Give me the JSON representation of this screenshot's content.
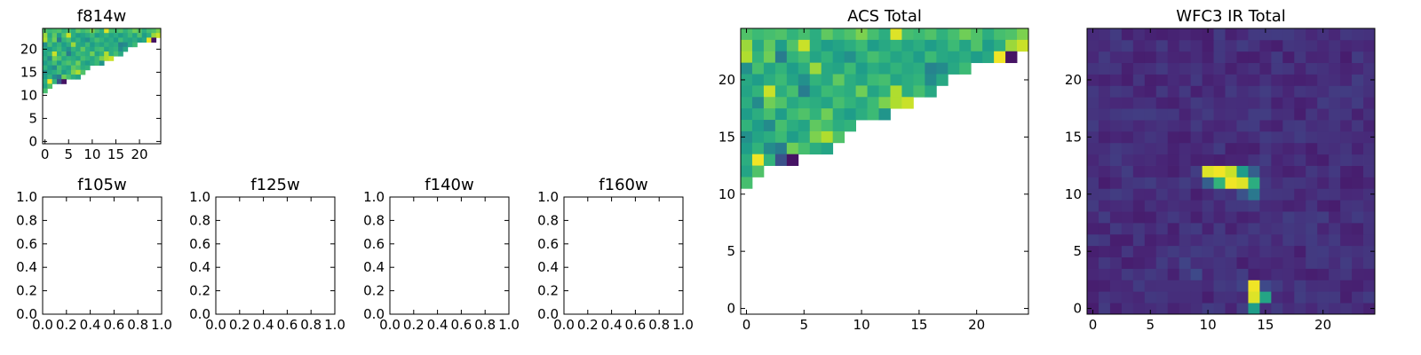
{
  "chart_data": [
    {
      "id": "f814w",
      "type": "heatmap",
      "title": "f814w",
      "xlim": [
        -0.5,
        24.5
      ],
      "ylim": [
        -0.5,
        24.5
      ],
      "xticks": [
        0,
        5,
        10,
        15,
        20
      ],
      "yticks": [
        0,
        5,
        10,
        15,
        20
      ],
      "source": "acs",
      "cbar_range": [
        0,
        1
      ]
    },
    {
      "id": "f105w",
      "type": "heatmap",
      "title": "f105w",
      "xlim": [
        0.0,
        1.0
      ],
      "ylim": [
        0.0,
        1.0
      ],
      "xticks": [
        0.0,
        0.2,
        0.4,
        0.6,
        0.8,
        1.0
      ],
      "yticks": [
        0.0,
        0.2,
        0.4,
        0.6,
        0.8,
        1.0
      ],
      "xtick_labels": [
        "0.0",
        "0.2",
        "0.4",
        "0.6",
        "0.8",
        "1.0"
      ],
      "ytick_labels": [
        "0.0",
        "0.2",
        "0.4",
        "0.6",
        "0.8",
        "1.0"
      ],
      "empty": true
    },
    {
      "id": "f125w",
      "type": "heatmap",
      "title": "f125w",
      "xlim": [
        0.0,
        1.0
      ],
      "ylim": [
        0.0,
        1.0
      ],
      "xticks": [
        0.0,
        0.2,
        0.4,
        0.6,
        0.8,
        1.0
      ],
      "yticks": [
        0.0,
        0.2,
        0.4,
        0.6,
        0.8,
        1.0
      ],
      "xtick_labels": [
        "0.0",
        "0.2",
        "0.4",
        "0.6",
        "0.8",
        "1.0"
      ],
      "ytick_labels": [
        "0.0",
        "0.2",
        "0.4",
        "0.6",
        "0.8",
        "1.0"
      ],
      "empty": true
    },
    {
      "id": "f140w",
      "type": "heatmap",
      "title": "f140w",
      "xlim": [
        0.0,
        1.0
      ],
      "ylim": [
        0.0,
        1.0
      ],
      "xticks": [
        0.0,
        0.2,
        0.4,
        0.6,
        0.8,
        1.0
      ],
      "yticks": [
        0.0,
        0.2,
        0.4,
        0.6,
        0.8,
        1.0
      ],
      "xtick_labels": [
        "0.0",
        "0.2",
        "0.4",
        "0.6",
        "0.8",
        "1.0"
      ],
      "ytick_labels": [
        "0.0",
        "0.2",
        "0.4",
        "0.6",
        "0.8",
        "1.0"
      ],
      "empty": true
    },
    {
      "id": "f160w",
      "type": "heatmap",
      "title": "f160w",
      "xlim": [
        0.0,
        1.0
      ],
      "ylim": [
        0.0,
        1.0
      ],
      "xticks": [
        0.0,
        0.2,
        0.4,
        0.6,
        0.8,
        1.0
      ],
      "yticks": [
        0.0,
        0.2,
        0.4,
        0.6,
        0.8,
        1.0
      ],
      "xtick_labels": [
        "0.0",
        "0.2",
        "0.4",
        "0.6",
        "0.8",
        "1.0"
      ],
      "ytick_labels": [
        "0.0",
        "0.2",
        "0.4",
        "0.6",
        "0.8",
        "1.0"
      ],
      "empty": true
    },
    {
      "id": "acs_total",
      "type": "heatmap",
      "title": "ACS Total",
      "xlim": [
        -0.5,
        24.5
      ],
      "ylim": [
        -0.5,
        24.5
      ],
      "xticks": [
        0,
        5,
        10,
        15,
        20
      ],
      "yticks": [
        0,
        5,
        10,
        15,
        20
      ],
      "source": "acs",
      "cbar_range": [
        0,
        1
      ]
    },
    {
      "id": "wfc3_ir_total",
      "type": "heatmap",
      "title": "WFC3 IR Total",
      "xlim": [
        -0.5,
        24.5
      ],
      "ylim": [
        -0.5,
        24.5
      ],
      "xticks": [
        0,
        5,
        10,
        15,
        20
      ],
      "yticks": [
        0,
        5,
        10,
        15,
        20
      ],
      "source": "ir",
      "cbar_range": [
        0,
        1
      ]
    }
  ],
  "grids": {
    "acs": {
      "shape": [
        25,
        25
      ],
      "rows_top_to_bottom": [
        [
          0.72,
          0.68,
          0.7,
          0.72,
          0.65,
          0.7,
          0.62,
          0.75,
          0.68,
          0.72,
          0.8,
          0.7,
          0.62,
          0.95,
          0.7,
          0.68,
          0.72,
          0.64,
          0.7,
          0.78,
          0.72,
          0.62,
          0.7,
          0.72,
          0.8
        ],
        [
          0.85,
          0.6,
          0.75,
          0.55,
          0.72,
          0.92,
          0.62,
          0.55,
          0.58,
          0.62,
          0.68,
          0.55,
          0.6,
          0.65,
          0.58,
          0.62,
          0.55,
          0.6,
          0.68,
          0.58,
          0.72,
          0.55,
          0.62,
          0.85,
          0.92
        ],
        [
          0.88,
          0.65,
          0.78,
          0.42,
          0.65,
          0.7,
          0.58,
          0.65,
          0.55,
          0.5,
          0.62,
          0.7,
          0.65,
          0.58,
          0.62,
          0.55,
          0.68,
          0.6,
          0.58,
          0.62,
          0.55,
          0.6,
          0.98,
          0.05
        ],
        [
          0.5,
          0.7,
          0.58,
          0.65,
          0.55,
          0.62,
          0.85,
          0.6,
          0.58,
          0.68,
          0.55,
          0.62,
          0.58,
          0.65,
          0.6,
          0.62,
          0.45,
          0.48,
          0.6,
          0.68
        ],
        [
          0.6,
          0.55,
          0.62,
          0.68,
          0.58,
          0.5,
          0.65,
          0.6,
          0.75,
          0.62,
          0.58,
          0.68,
          0.7,
          0.58,
          0.62,
          0.65,
          0.48,
          0.6
        ],
        [
          0.58,
          0.65,
          0.92,
          0.62,
          0.7,
          0.42,
          0.58,
          0.68,
          0.65,
          0.62,
          0.78,
          0.58,
          0.65,
          0.88,
          0.62,
          0.7,
          0.6
        ],
        [
          0.62,
          0.48,
          0.78,
          0.72,
          0.6,
          0.65,
          0.62,
          0.58,
          0.7,
          0.65,
          0.6,
          0.68,
          0.8,
          0.88,
          0.92
        ],
        [
          0.55,
          0.62,
          0.7,
          0.55,
          0.68,
          0.72,
          0.65,
          0.78,
          0.6,
          0.55,
          0.62,
          0.68,
          0.52
        ],
        [
          0.65,
          0.55,
          0.48,
          0.7,
          0.62,
          0.58,
          0.75,
          0.7,
          0.62,
          0.65
        ],
        [
          0.5,
          0.58,
          0.62,
          0.68,
          0.55,
          0.62,
          0.8,
          0.88,
          0.72
        ],
        [
          0.55,
          0.65,
          0.48,
          0.42,
          0.78,
          0.7,
          0.62,
          0.58
        ],
        [
          0.62,
          0.98,
          0.65,
          0.25,
          0.05
        ],
        [
          0.58,
          0.72
        ],
        [
          0.7
        ]
      ]
    },
    "ir": {
      "shape": [
        25,
        25
      ],
      "base": 0.08,
      "bright": [
        {
          "col": 10,
          "row": 12,
          "v": 0.95
        },
        {
          "col": 11,
          "row": 12,
          "v": 0.98
        },
        {
          "col": 12,
          "row": 12,
          "v": 0.92
        },
        {
          "col": 13,
          "row": 12,
          "v": 0.55
        },
        {
          "col": 11,
          "row": 11,
          "v": 0.65
        },
        {
          "col": 12,
          "row": 11,
          "v": 0.98
        },
        {
          "col": 13,
          "row": 11,
          "v": 0.95
        },
        {
          "col": 14,
          "row": 11,
          "v": 0.62
        },
        {
          "col": 10,
          "row": 11,
          "v": 0.3
        },
        {
          "col": 14,
          "row": 12,
          "v": 0.3
        },
        {
          "col": 14,
          "row": 10,
          "v": 0.4
        },
        {
          "col": 13,
          "row": 10,
          "v": 0.25
        },
        {
          "col": 14,
          "row": 2,
          "v": 0.98
        },
        {
          "col": 14,
          "row": 1,
          "v": 0.95
        },
        {
          "col": 14,
          "row": 0,
          "v": 0.55
        },
        {
          "col": 15,
          "row": 1,
          "v": 0.58
        },
        {
          "col": 15,
          "row": 2,
          "v": 0.22
        },
        {
          "col": 13,
          "row": 2,
          "v": 0.2
        },
        {
          "col": 9,
          "row": 3,
          "v": 0.22
        },
        {
          "col": 8,
          "row": 4,
          "v": 0.2
        },
        {
          "col": 13,
          "row": 3,
          "v": 0.18
        },
        {
          "col": 9,
          "row": 12,
          "v": 0.18
        }
      ]
    }
  },
  "colormap": [
    "#440154",
    "#482878",
    "#3e4a89",
    "#31688e",
    "#26828e",
    "#1f9e89",
    "#35b779",
    "#6ece58",
    "#b5de2b",
    "#fde725"
  ]
}
